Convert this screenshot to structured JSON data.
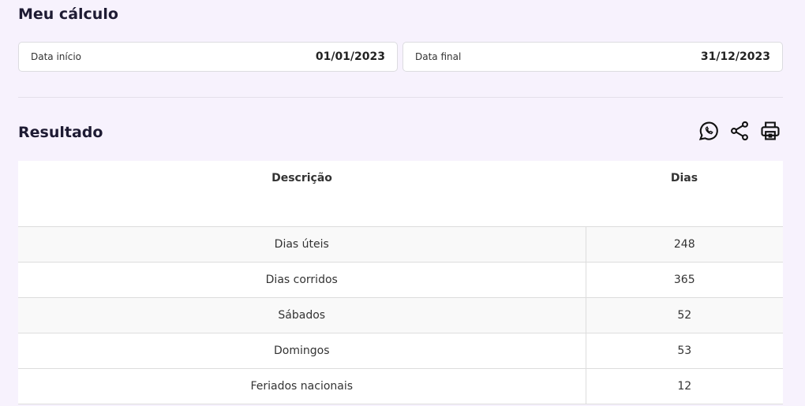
{
  "calc": {
    "title": "Meu cálculo",
    "start_label": "Data início",
    "start_value": "01/01/2023",
    "end_label": "Data final",
    "end_value": "31/12/2023"
  },
  "result": {
    "title": "Resultado",
    "icons": [
      "whatsapp-icon",
      "share-icon",
      "print-icon"
    ],
    "headers": [
      "Descrição",
      "Dias"
    ],
    "rows": [
      [
        "Dias úteis",
        "248"
      ],
      [
        "Dias corridos",
        "365"
      ],
      [
        "Sábados",
        "52"
      ],
      [
        "Domingos",
        "53"
      ],
      [
        "Feriados nacionais",
        "12"
      ]
    ]
  }
}
